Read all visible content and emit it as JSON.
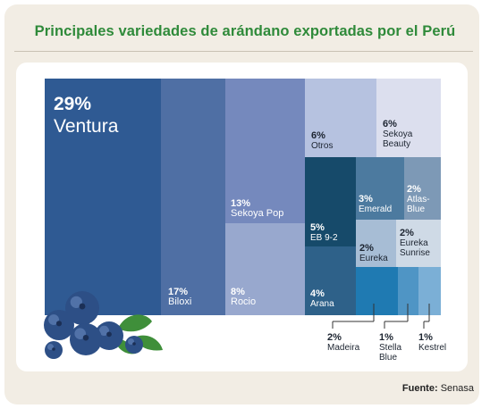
{
  "header": {
    "title": "Principales variedades de arándano exportadas por el Perú"
  },
  "footer": {
    "source_label": "Fuente:",
    "source_value": "Senasa"
  },
  "colors": {
    "background": "#f2ede4",
    "title": "#2f8a3a",
    "ventura": "#2f5a93",
    "biloxi": "#4f6fa4",
    "sekoya_pop": "#7589bd",
    "rocio": "#98a8ce",
    "otros": "#b6c2e0",
    "sekoya_beauty": "#dcdfee",
    "eb92": "#164a6a",
    "arana": "#2e6189",
    "emerald": "#4c7a9f",
    "atlas_blue": "#7d99b6",
    "eureka": "#a7bdd5",
    "eureka_sunrise": "#cfdae6",
    "madeira": "#1f7ab2",
    "stella_blue": "#4f95c5",
    "kestrel": "#7bafd6"
  },
  "chart_data": {
    "type": "treemap",
    "title": "Principales variedades de arándano exportadas por el Perú",
    "unit": "%",
    "items": [
      {
        "name": "Ventura",
        "value": 29,
        "label": "29%"
      },
      {
        "name": "Biloxi",
        "value": 17,
        "label": "17%"
      },
      {
        "name": "Sekoya Pop",
        "value": 13,
        "label": "13%"
      },
      {
        "name": "Rocio",
        "value": 8,
        "label": "8%"
      },
      {
        "name": "Otros",
        "value": 6,
        "label": "6%"
      },
      {
        "name": "Sekoya Beauty",
        "value": 6,
        "label": "6%"
      },
      {
        "name": "EB 9-2",
        "value": 5,
        "label": "5%"
      },
      {
        "name": "Arana",
        "value": 4,
        "label": "4%"
      },
      {
        "name": "Emerald",
        "value": 3,
        "label": "3%"
      },
      {
        "name": "Atlas-Blue",
        "value": 2,
        "label": "2%"
      },
      {
        "name": "Eureka",
        "value": 2,
        "label": "2%"
      },
      {
        "name": "Eureka Sunrise",
        "value": 2,
        "label": "2%"
      },
      {
        "name": "Madeira",
        "value": 2,
        "label": "2%"
      },
      {
        "name": "Stella Blue",
        "value": 1,
        "label": "1%"
      },
      {
        "name": "Kestrel",
        "value": 1,
        "label": "1%"
      }
    ]
  }
}
